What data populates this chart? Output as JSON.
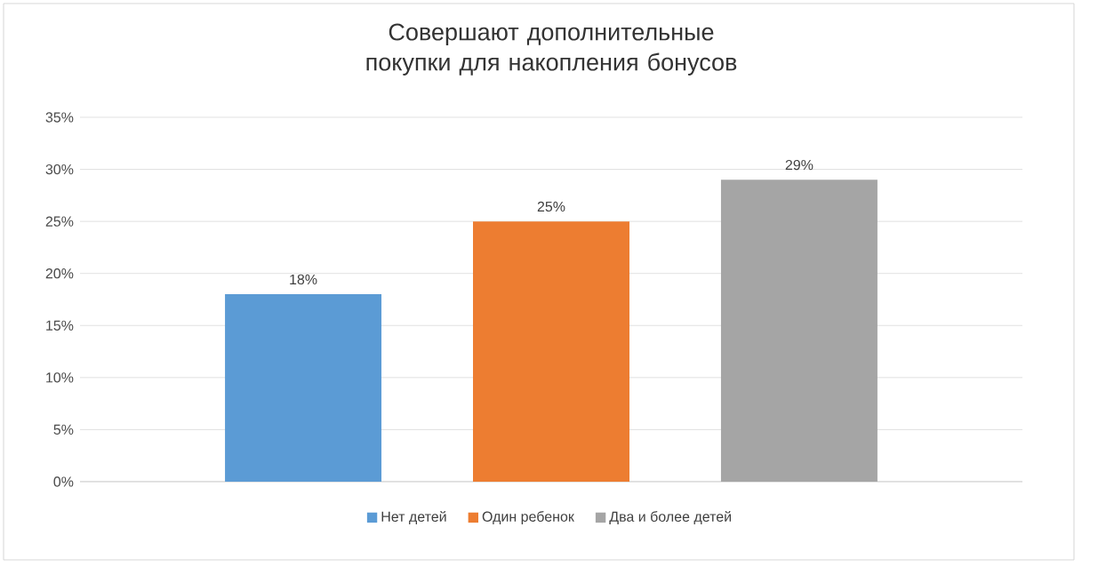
{
  "chart_data": {
    "type": "bar",
    "title": "Совершают дополнительные покупки для накопления бонусов",
    "categories": [
      null
    ],
    "series": [
      {
        "name": "Нет детей",
        "color": "#5b9bd5",
        "values": [
          18
        ],
        "value_labels": [
          "18%"
        ]
      },
      {
        "name": "Один ребенок",
        "color": "#ed7d31",
        "values": [
          25
        ],
        "value_labels": [
          "25%"
        ]
      },
      {
        "name": "Два и более детей",
        "color": "#a5a5a5",
        "values": [
          29
        ],
        "value_labels": [
          "29%"
        ]
      }
    ],
    "ylim": [
      0,
      35
    ],
    "yticks": [
      {
        "value": 0,
        "label": "0%"
      },
      {
        "value": 5,
        "label": "5%"
      },
      {
        "value": 10,
        "label": "10%"
      },
      {
        "value": 15,
        "label": "15%"
      },
      {
        "value": 20,
        "label": "20%"
      },
      {
        "value": 25,
        "label": "25%"
      },
      {
        "value": 30,
        "label": "30%"
      },
      {
        "value": 35,
        "label": "35%"
      }
    ],
    "grid": "y",
    "legend": "bottom"
  }
}
